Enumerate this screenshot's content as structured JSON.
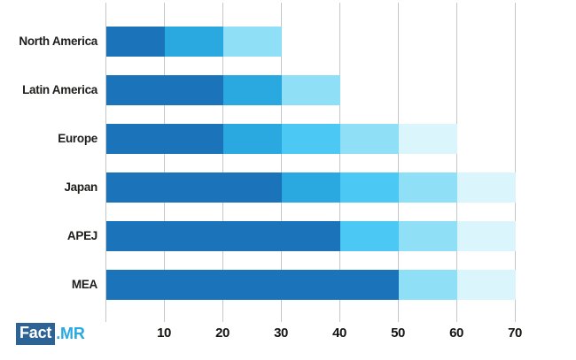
{
  "chart_data": {
    "type": "bar",
    "orientation": "horizontal",
    "stacked": true,
    "title": "",
    "xlabel": "",
    "ylabel": "",
    "xlim": [
      0,
      75
    ],
    "x_ticks": [
      "10",
      "20",
      "30",
      "40",
      "50",
      "60",
      "70"
    ],
    "grid": true,
    "legend": "none",
    "palette": {
      "c1": "#1b73b9",
      "c2": "#2aa8e0",
      "c3": "#4cc8f4",
      "c4": "#8fe0f7",
      "c5": "#dbf5fc"
    },
    "categories": [
      "North America",
      "Latin America",
      "Europe",
      "Japan",
      "APEJ",
      "MEA"
    ],
    "bars": [
      {
        "category": "North America",
        "total": 30,
        "segments": [
          {
            "value": 10,
            "color": "c1"
          },
          {
            "value": 10,
            "color": "c2"
          },
          {
            "value": 10,
            "color": "c4"
          }
        ]
      },
      {
        "category": "Latin America",
        "total": 40,
        "segments": [
          {
            "value": 20,
            "color": "c1"
          },
          {
            "value": 10,
            "color": "c2"
          },
          {
            "value": 10,
            "color": "c4"
          }
        ]
      },
      {
        "category": "Europe",
        "total": 60,
        "segments": [
          {
            "value": 20,
            "color": "c1"
          },
          {
            "value": 10,
            "color": "c2"
          },
          {
            "value": 10,
            "color": "c3"
          },
          {
            "value": 10,
            "color": "c4"
          },
          {
            "value": 10,
            "color": "c5"
          }
        ]
      },
      {
        "category": "Japan",
        "total": 70,
        "segments": [
          {
            "value": 30,
            "color": "c1"
          },
          {
            "value": 10,
            "color": "c2"
          },
          {
            "value": 10,
            "color": "c3"
          },
          {
            "value": 10,
            "color": "c4"
          },
          {
            "value": 10,
            "color": "c5"
          }
        ]
      },
      {
        "category": "APEJ",
        "total": 70,
        "segments": [
          {
            "value": 40,
            "color": "c1"
          },
          {
            "value": 10,
            "color": "c3"
          },
          {
            "value": 10,
            "color": "c4"
          },
          {
            "value": 10,
            "color": "c5"
          }
        ]
      },
      {
        "category": "MEA",
        "total": 70,
        "segments": [
          {
            "value": 50,
            "color": "c1"
          },
          {
            "value": 10,
            "color": "c4"
          },
          {
            "value": 10,
            "color": "c5"
          }
        ]
      }
    ]
  },
  "branding": {
    "logo_box_text": "Fact",
    "logo_suffix_text": ".MR",
    "logo_box_color": "#2d6394",
    "logo_suffix_color": "#29a9e0"
  }
}
